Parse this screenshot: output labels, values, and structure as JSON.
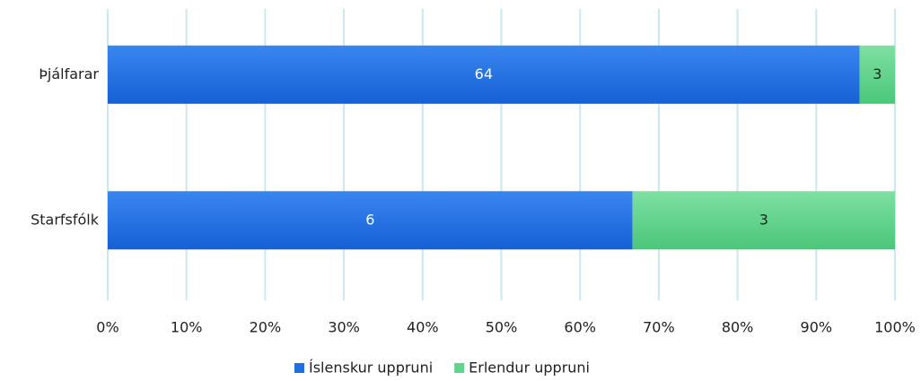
{
  "chart_data": {
    "type": "bar",
    "orientation": "horizontal",
    "stacking": "percent",
    "categories": [
      "Þjálfarar",
      "Starfsfólk"
    ],
    "series": [
      {
        "name": "Íslenskur uppruni",
        "color": "#1f6fe0",
        "values": [
          64,
          6
        ]
      },
      {
        "name": "Erlendur uppruni",
        "color": "#5fd48c",
        "values": [
          3,
          3
        ]
      }
    ],
    "xlim": [
      0,
      100
    ],
    "xticks": [
      {
        "value": 0,
        "label": "0%"
      },
      {
        "value": 10,
        "label": "10%"
      },
      {
        "value": 20,
        "label": "20%"
      },
      {
        "value": 30,
        "label": "30%"
      },
      {
        "value": 40,
        "label": "40%"
      },
      {
        "value": 50,
        "label": "50%"
      },
      {
        "value": 60,
        "label": "60%"
      },
      {
        "value": 70,
        "label": "70%"
      },
      {
        "value": 80,
        "label": "80%"
      },
      {
        "value": 90,
        "label": "90%"
      },
      {
        "value": 100,
        "label": "100%"
      }
    ],
    "grid": true,
    "legend": "bottom"
  }
}
